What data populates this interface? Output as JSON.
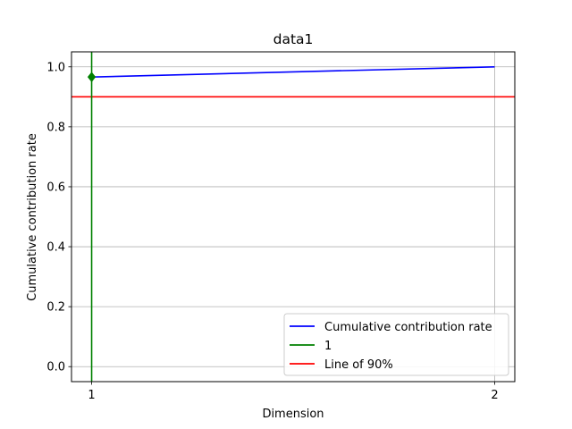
{
  "chart_data": {
    "type": "line",
    "title": "data1",
    "xlabel": "Dimension",
    "ylabel": "Cumulative contribution rate",
    "xlim": [
      0.95,
      2.05
    ],
    "ylim": [
      -0.05,
      1.05
    ],
    "x_ticks": [
      1,
      2
    ],
    "y_ticks": [
      0.0,
      0.2,
      0.4,
      0.6,
      0.8,
      1.0
    ],
    "x_tick_labels": [
      "1",
      "2"
    ],
    "y_tick_labels": [
      "0.0",
      "0.2",
      "0.4",
      "0.6",
      "0.8",
      "1.0"
    ],
    "grid": true,
    "legend_position": "lower-right",
    "series": [
      {
        "name": "Cumulative contribution rate",
        "kind": "line",
        "color": "#0000ff",
        "x": [
          1,
          2
        ],
        "y": [
          0.966,
          1.0
        ]
      }
    ],
    "vertical_lines": [
      {
        "name": "1",
        "color": "#008000",
        "x": 1,
        "marker_y": 0.966,
        "marker": "diamond"
      }
    ],
    "horizontal_lines": [
      {
        "name": "Line of 90%",
        "color": "#ff0000",
        "y": 0.9
      }
    ]
  }
}
